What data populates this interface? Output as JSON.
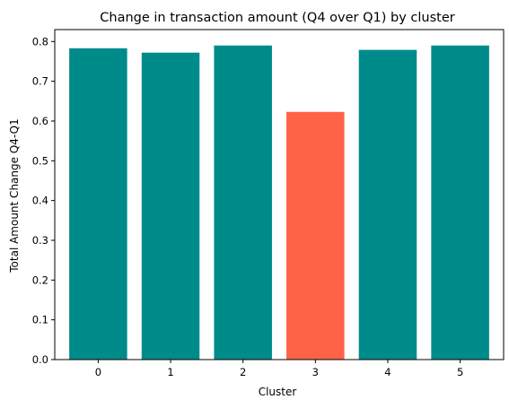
{
  "chart_data": {
    "type": "bar",
    "title": "Change in transaction amount (Q4 over Q1) by cluster",
    "xlabel": "Cluster",
    "ylabel": "Total Amount Change Q4-Q1",
    "categories": [
      "0",
      "1",
      "2",
      "3",
      "4",
      "5"
    ],
    "values": [
      0.783,
      0.772,
      0.79,
      0.623,
      0.779,
      0.79
    ],
    "colors": [
      "#008b8b",
      "#008b8b",
      "#008b8b",
      "#ff6347",
      "#008b8b",
      "#008b8b"
    ],
    "ylim": [
      0,
      0.83
    ],
    "yticks": [
      0.0,
      0.1,
      0.2,
      0.3,
      0.4,
      0.5,
      0.6,
      0.7,
      0.8
    ],
    "ytick_labels": [
      "0.0",
      "0.1",
      "0.2",
      "0.3",
      "0.4",
      "0.5",
      "0.6",
      "0.7",
      "0.8"
    ],
    "grid": false,
    "legend": "none"
  }
}
